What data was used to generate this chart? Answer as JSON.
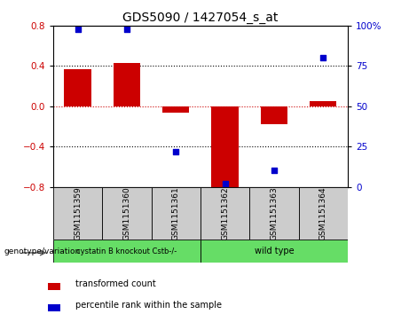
{
  "title": "GDS5090 / 1427054_s_at",
  "samples": [
    "GSM1151359",
    "GSM1151360",
    "GSM1151361",
    "GSM1151362",
    "GSM1151363",
    "GSM1151364"
  ],
  "bar_values": [
    0.37,
    0.43,
    -0.06,
    -0.82,
    -0.18,
    0.05
  ],
  "percentile_values": [
    98,
    98,
    22,
    2,
    10,
    80
  ],
  "ylim_left": [
    -0.8,
    0.8
  ],
  "ylim_right": [
    0,
    100
  ],
  "bar_color": "#cc0000",
  "dot_color": "#0000cc",
  "zero_line_color": "#cc0000",
  "grid_color": "#000000",
  "group1_label": "cystatin B knockout Cstb-/-",
  "group2_label": "wild type",
  "group1_color": "#66dd66",
  "group2_color": "#66dd66",
  "group1_indices": [
    0,
    1,
    2
  ],
  "group2_indices": [
    3,
    4,
    5
  ],
  "genotype_label": "genotype/variation",
  "legend_bar_label": "transformed count",
  "legend_dot_label": "percentile rank within the sample",
  "yticks_left": [
    -0.8,
    -0.4,
    0.0,
    0.4,
    0.8
  ],
  "yticks_right": [
    0,
    25,
    50,
    75,
    100
  ],
  "bar_width": 0.55,
  "label_box_color": "#cccccc",
  "label_font_size": 6.5,
  "group_font_size": 7,
  "title_font_size": 10
}
